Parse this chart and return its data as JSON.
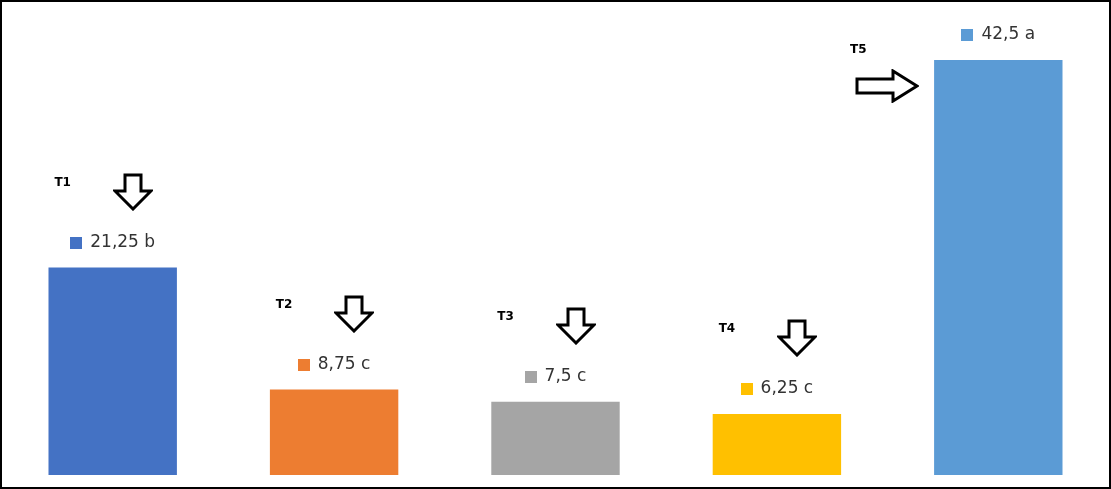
{
  "chart_data": {
    "type": "bar",
    "categories": [
      null,
      null,
      null,
      null,
      null
    ],
    "values": [
      21.25,
      8.75,
      7.5,
      6.25,
      42.5
    ],
    "colors": [
      "#4472c4",
      "#ed7d31",
      "#a5a5a5",
      "#ffc000",
      "#5b9bd5"
    ],
    "value_labels": [
      "21,25 b",
      "8,75 c",
      "7,5 c",
      "6,25 c",
      "42,5 a"
    ],
    "annotations": [
      "T1",
      "T2",
      "T3",
      "T4",
      "T5"
    ],
    "legend": false
  }
}
